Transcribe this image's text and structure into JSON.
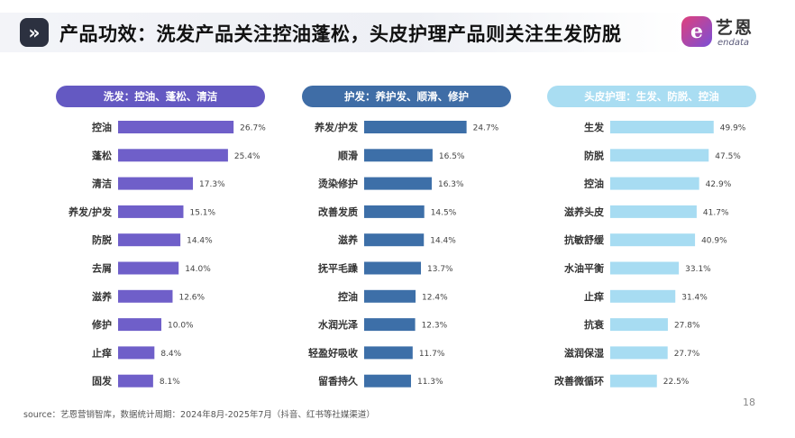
{
  "header": {
    "icon": "double-chevron-right-icon",
    "title": "产品功效：洗发产品关注控油蓬松，头皮护理产品则关注生发防脱"
  },
  "logo": {
    "mark": "e",
    "name_cn": "艺恩",
    "name_en": "endata"
  },
  "colors": {
    "panel1": "#6f5fc9",
    "panel2": "#3d6fa8",
    "panel3": "#a7dcf2",
    "panel1_pill": "#6459c2",
    "panel2_pill": "#3f6da6",
    "panel3_pill": "#a9ddf2"
  },
  "chart_data": [
    {
      "type": "bar",
      "orientation": "horizontal",
      "title": "洗发：控油、蓬松、清洁",
      "categories": [
        "控油",
        "蓬松",
        "清洁",
        "养发/护发",
        "防脱",
        "去屑",
        "滋养",
        "修护",
        "止痒",
        "固发"
      ],
      "values": [
        26.7,
        25.4,
        17.3,
        15.1,
        14.4,
        14.0,
        12.6,
        10.0,
        8.4,
        8.1
      ],
      "labels": [
        "26.7%",
        "25.4%",
        "17.3%",
        "15.1%",
        "14.4%",
        "14.0%",
        "12.6%",
        "10.0%",
        "8.4%",
        "8.1%"
      ],
      "color": "#6f5fc9",
      "grid": false
    },
    {
      "type": "bar",
      "orientation": "horizontal",
      "title": "护发：养护发、顺滑、修护",
      "categories": [
        "养发/护发",
        "顺滑",
        "烫染修护",
        "改善发质",
        "滋养",
        "抚平毛躁",
        "控油",
        "水润光泽",
        "轻盈好吸收",
        "留香持久"
      ],
      "values": [
        24.7,
        16.5,
        16.3,
        14.5,
        14.4,
        13.7,
        12.4,
        12.3,
        11.7,
        11.3
      ],
      "labels": [
        "24.7%",
        "16.5%",
        "16.3%",
        "14.5%",
        "14.4%",
        "13.7%",
        "12.4%",
        "12.3%",
        "11.7%",
        "11.3%"
      ],
      "color": "#3d6fa8",
      "grid": false
    },
    {
      "type": "bar",
      "orientation": "horizontal",
      "title": "头皮护理：生发、防脱、控油",
      "categories": [
        "生发",
        "防脱",
        "控油",
        "滋养头皮",
        "抗敏舒缓",
        "水油平衡",
        "止痒",
        "抗衰",
        "滋润保湿",
        "改善微循环"
      ],
      "values": [
        49.9,
        47.5,
        42.9,
        41.7,
        40.9,
        33.1,
        31.4,
        27.8,
        27.7,
        22.5
      ],
      "labels": [
        "49.9%",
        "47.5%",
        "42.9%",
        "41.7%",
        "40.9%",
        "33.1%",
        "31.4%",
        "27.8%",
        "27.7%",
        "22.5%"
      ],
      "color": "#a7dcf2",
      "grid": false
    }
  ],
  "footer": {
    "source": "source：艺恩营销智库，数据统计周期：2024年8月-2025年7月（抖音、红书等社媒渠道）",
    "page_number": "18"
  }
}
